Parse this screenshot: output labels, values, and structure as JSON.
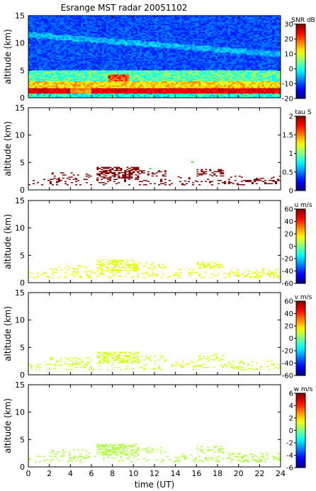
{
  "figure": {
    "title": "Esrange MST radar 20051102",
    "xlabel": "time (UT)"
  },
  "chart_data": [
    {
      "type": "heatmap",
      "name": "snr",
      "ylabel": "altitude (km)",
      "xlim": [
        0,
        24
      ],
      "ylim": [
        0,
        15
      ],
      "xticks": [
        "0",
        "2",
        "4",
        "6",
        "8",
        "10",
        "12",
        "14",
        "16",
        "18",
        "20",
        "22",
        "24"
      ],
      "yticks": [
        "0",
        "5",
        "10",
        "15"
      ],
      "colorbar": {
        "label": "SNR dB",
        "min": -20,
        "max": 30,
        "ticks": [
          "30",
          "20",
          "10",
          "0",
          "-10",
          "-20"
        ]
      },
      "fill": "full",
      "description_layers": [
        {
          "alt": [
            0.8,
            1.8
          ],
          "value": 25
        },
        {
          "alt": [
            1.8,
            3.0
          ],
          "value": 12
        },
        {
          "alt": [
            3.0,
            5.0
          ],
          "value": 2
        },
        {
          "alt": [
            5.0,
            15.0
          ],
          "value": -12
        }
      ]
    },
    {
      "type": "heatmap",
      "name": "tau",
      "ylabel": "altitude (km)",
      "xlim": [
        0,
        24
      ],
      "ylim": [
        0,
        15
      ],
      "xticks": [
        "0",
        "2",
        "4",
        "6",
        "8",
        "10",
        "12",
        "14",
        "16",
        "18",
        "20",
        "22",
        "24"
      ],
      "yticks": [
        "0",
        "5",
        "10",
        "15"
      ],
      "colorbar": {
        "label": "tau S",
        "min": 0,
        "max": 2,
        "ticks": [
          "2",
          "1.5",
          "1",
          "0.5",
          "0"
        ]
      },
      "value": 2.0,
      "green_patches": [
        [
          11.5,
          4.0
        ],
        [
          15.5,
          5.2
        ]
      ]
    },
    {
      "type": "heatmap",
      "name": "u",
      "ylabel": "altitude (km)",
      "xlim": [
        0,
        24
      ],
      "ylim": [
        0,
        15
      ],
      "xticks": [
        "0",
        "2",
        "4",
        "6",
        "8",
        "10",
        "12",
        "14",
        "16",
        "18",
        "20",
        "22",
        "24"
      ],
      "yticks": [
        "0",
        "5",
        "10",
        "15"
      ],
      "colorbar": {
        "label": "u m/s",
        "min": -60,
        "max": 60,
        "ticks": [
          "60",
          "40",
          "20",
          "0",
          "-20",
          "-40",
          "-60"
        ]
      },
      "value": 12
    },
    {
      "type": "heatmap",
      "name": "v",
      "ylabel": "altitude (km)",
      "xlim": [
        0,
        24
      ],
      "ylim": [
        0,
        15
      ],
      "xticks": [
        "0",
        "2",
        "4",
        "6",
        "8",
        "10",
        "12",
        "14",
        "16",
        "18",
        "20",
        "22",
        "24"
      ],
      "yticks": [
        "0",
        "5",
        "10",
        "15"
      ],
      "colorbar": {
        "label": "v m/s",
        "min": -60,
        "max": 60,
        "ticks": [
          "60",
          "40",
          "20",
          "0",
          "-20",
          "-40",
          "-60"
        ]
      },
      "value": 10
    },
    {
      "type": "heatmap",
      "name": "w",
      "ylabel": "altitude (km)",
      "xlim": [
        0,
        24
      ],
      "ylim": [
        0,
        15
      ],
      "xticks": [
        "0",
        "2",
        "4",
        "6",
        "8",
        "10",
        "12",
        "14",
        "16",
        "18",
        "20",
        "22",
        "24"
      ],
      "yticks": [
        "0",
        "5",
        "10",
        "15"
      ],
      "colorbar": {
        "label": "w m/s",
        "min": -6,
        "max": 6,
        "ticks": [
          "6",
          "4",
          "2",
          "0",
          "-2",
          "-4",
          "-6"
        ]
      },
      "value": 0.6
    }
  ]
}
